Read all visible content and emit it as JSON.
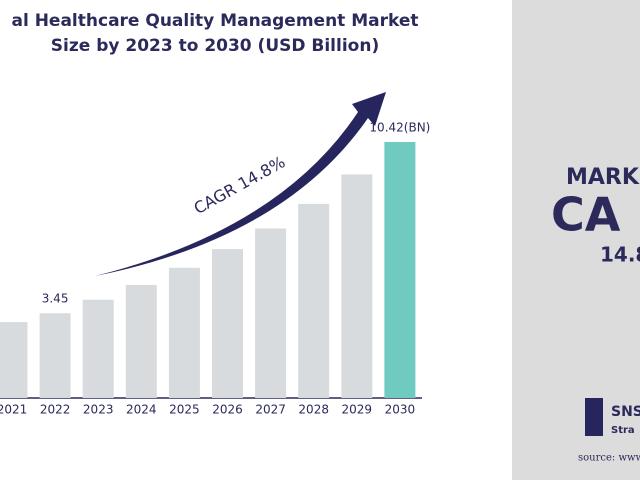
{
  "chart_data": {
    "type": "bar",
    "title_lines": [
      "al Healthcare Quality Management Market",
      "Size by 2023 to 2030 (USD Billion)"
    ],
    "categories": [
      "2021",
      "2022",
      "2023",
      "2024",
      "2025",
      "2026",
      "2027",
      "2028",
      "2029",
      "2030"
    ],
    "values": [
      3.09,
      3.45,
      4.0,
      4.6,
      5.3,
      6.06,
      6.9,
      7.9,
      9.1,
      10.42
    ],
    "value_labels": [
      null,
      "3.45",
      null,
      null,
      null,
      null,
      null,
      null,
      null,
      "10.42(BN)"
    ],
    "colors": [
      "#d7dbde",
      "#d7dbde",
      "#d7dbde",
      "#d7dbde",
      "#d7dbde",
      "#d7dbde",
      "#d7dbde",
      "#d7dbde",
      "#d7dbde",
      "#6fcbbf"
    ],
    "annotation": "CAGR 14.8%"
  },
  "side_panel": {
    "heading": "MARK",
    "big": "CA",
    "value": "14.8",
    "logo": "SNS",
    "logo_sub": "Stra",
    "source": "source: www"
  }
}
